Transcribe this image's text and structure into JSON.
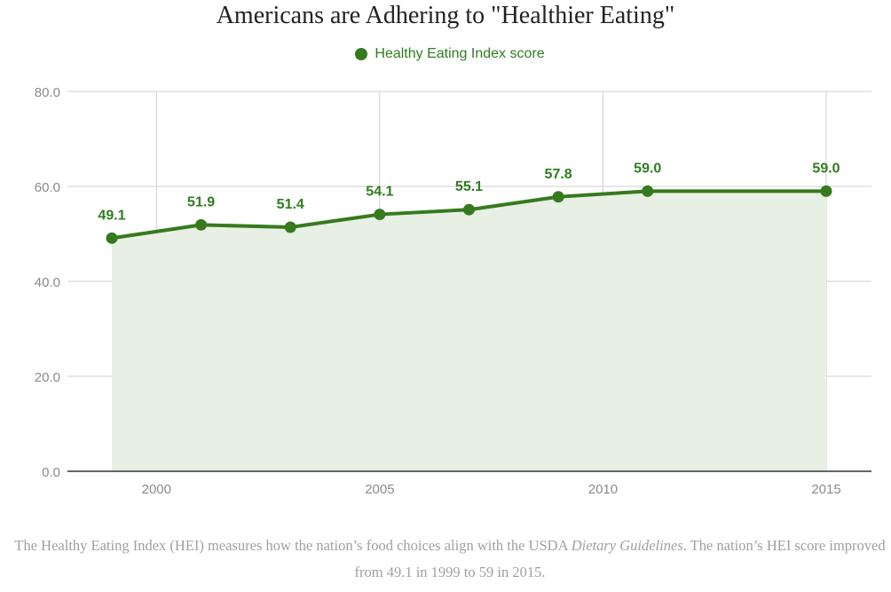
{
  "colors": {
    "series": "#367a1e",
    "series_label": "#2e7d1e",
    "fill": "#e8f0e5",
    "grid": "#cfcfcf",
    "axis": "#333333",
    "tick_text": "#8a8a8a",
    "title": "#222222",
    "caption": "#a0a0a0"
  },
  "chart_data": {
    "type": "area",
    "title": "Americans are Adhering to \"Healthier Eating\"",
    "xlabel": "",
    "ylabel": "",
    "x_ticks": [
      2000,
      2005,
      2010,
      2015
    ],
    "y_ticks": [
      0.0,
      20.0,
      40.0,
      60.0,
      80.0
    ],
    "y_tick_labels": [
      "0.0",
      "20.0",
      "40.0",
      "60.0",
      "80.0"
    ],
    "xlim": [
      1998,
      2016
    ],
    "ylim": [
      0,
      80
    ],
    "grid": true,
    "legend_position": "top-center",
    "series": [
      {
        "name": "Healthy Eating Index score",
        "x": [
          1999,
          2001,
          2003,
          2005,
          2007,
          2009,
          2011,
          2015
        ],
        "values": [
          49.1,
          51.9,
          51.4,
          54.1,
          55.1,
          57.8,
          59.0,
          59.0
        ],
        "labels": [
          "49.1",
          "51.9",
          "51.4",
          "54.1",
          "55.1",
          "57.8",
          "59.0",
          "59.0"
        ]
      }
    ]
  },
  "caption": {
    "part1": "The Healthy Eating Index (HEI) measures how the nation’s food choices align with the USDA ",
    "italic": "Dietary Guidelines",
    "part2": ". The nation’s HEI score improved from 49.1 in 1999 to 59 in 2015."
  }
}
